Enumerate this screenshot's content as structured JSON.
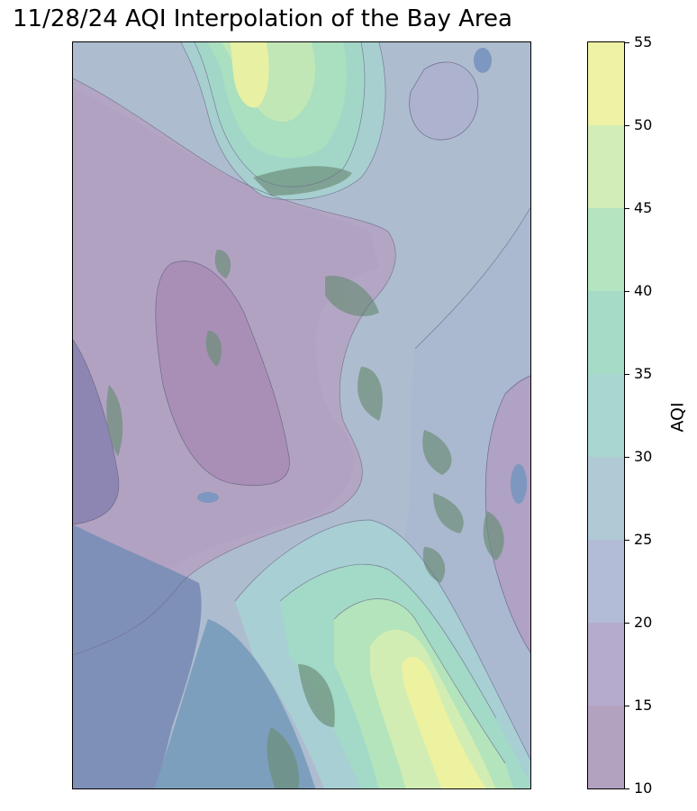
{
  "title": "11/28/24 AQI Interpolation of the Bay Area",
  "colorbar": {
    "label": "AQI",
    "ticks": [
      "10",
      "15",
      "20",
      "25",
      "30",
      "35",
      "40",
      "45",
      "50",
      "55"
    ],
    "bands": [
      {
        "range": [
          10,
          15
        ],
        "color": "#b3a1c0"
      },
      {
        "range": [
          15,
          20
        ],
        "color": "#b4abcd"
      },
      {
        "range": [
          20,
          25
        ],
        "color": "#b3bcd6"
      },
      {
        "range": [
          25,
          30
        ],
        "color": "#afc9d5"
      },
      {
        "range": [
          30,
          35
        ],
        "color": "#a8d6d0"
      },
      {
        "range": [
          35,
          40
        ],
        "color": "#a6dcc7"
      },
      {
        "range": [
          40,
          45
        ],
        "color": "#b5e4c0"
      },
      {
        "range": [
          45,
          50
        ],
        "color": "#d3edb6"
      },
      {
        "range": [
          50,
          55
        ],
        "color": "#eef2a4"
      }
    ]
  },
  "map": {
    "basemap_colors": {
      "ocean": "#7f90b8",
      "bay": "#7c9bbd",
      "land_low": "#b2a3c2",
      "land_mid": "#aebfcf",
      "urban": "#6f8f7c"
    },
    "contour_colors": {
      "level_10": "#b29cbd",
      "level_15": "#b1a9c9",
      "level_20": "#adbdd2",
      "level_25": "#a8c8cf",
      "level_30": "#a0d4c9",
      "level_35": "#9fdcc2",
      "level_40": "#b5e6b8",
      "level_45": "#d6efae",
      "level_50": "#f0f39c"
    }
  }
}
